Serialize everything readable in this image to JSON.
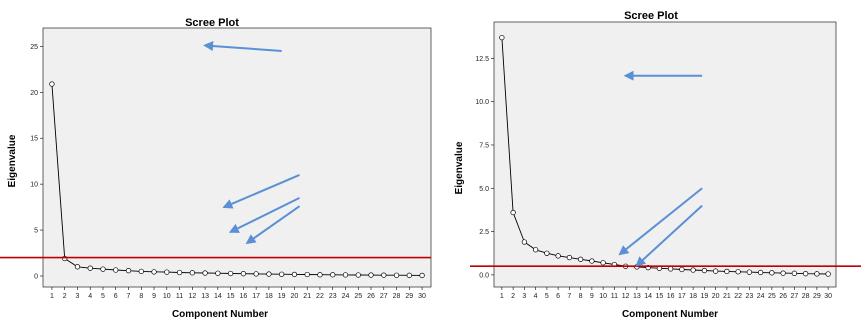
{
  "chart_data": [
    {
      "type": "line",
      "title": "Scree Plot",
      "xlabel": "Component Number",
      "ylabel": "Eigenvalue",
      "x": [
        1,
        2,
        3,
        4,
        5,
        6,
        7,
        8,
        9,
        10,
        11,
        12,
        13,
        14,
        15,
        16,
        17,
        18,
        19,
        20,
        21,
        22,
        23,
        24,
        25,
        26,
        27,
        28,
        29,
        30
      ],
      "values": [
        20.9,
        1.9,
        1.0,
        0.85,
        0.75,
        0.65,
        0.58,
        0.5,
        0.45,
        0.42,
        0.38,
        0.35,
        0.32,
        0.3,
        0.27,
        0.25,
        0.23,
        0.21,
        0.19,
        0.17,
        0.16,
        0.14,
        0.13,
        0.12,
        0.11,
        0.1,
        0.09,
        0.08,
        0.07,
        0.06
      ],
      "xlim": [
        0.3,
        30.7
      ],
      "ylim": [
        -1.2,
        27
      ],
      "yticks": [
        0,
        5,
        10,
        15,
        20,
        25
      ],
      "ytick_labels": [
        "0",
        "5",
        "10",
        "15",
        "20",
        "25"
      ],
      "reference_line": {
        "y": 2.0,
        "color": "#c00000"
      },
      "colors": {
        "line": "#000000",
        "plot_bg": "#f0f0f0",
        "arrow": "#5b8fd6"
      },
      "arrows": [
        {
          "from": [
            19.0,
            24.5
          ],
          "to": [
            13.0,
            25.1
          ]
        },
        {
          "from": [
            20.4,
            11.0
          ],
          "to": [
            14.5,
            7.5
          ]
        },
        {
          "from": [
            20.4,
            8.5
          ],
          "to": [
            15.0,
            4.8
          ]
        },
        {
          "from": [
            20.4,
            7.6
          ],
          "to": [
            16.3,
            3.6
          ]
        }
      ],
      "grid": false,
      "legend": "none"
    },
    {
      "type": "line",
      "title": "Scree Plot",
      "xlabel": "Component Number",
      "ylabel": "Eigenvalue",
      "x": [
        1,
        2,
        3,
        4,
        5,
        6,
        7,
        8,
        9,
        10,
        11,
        12,
        13,
        14,
        15,
        16,
        17,
        18,
        19,
        20,
        21,
        22,
        23,
        24,
        25,
        26,
        27,
        28,
        29,
        30
      ],
      "values": [
        13.7,
        3.6,
        1.9,
        1.45,
        1.25,
        1.1,
        1.0,
        0.9,
        0.8,
        0.7,
        0.6,
        0.5,
        0.46,
        0.42,
        0.38,
        0.35,
        0.31,
        0.28,
        0.25,
        0.22,
        0.2,
        0.18,
        0.16,
        0.14,
        0.12,
        0.1,
        0.09,
        0.07,
        0.06,
        0.05
      ],
      "xlim": [
        0.3,
        30.7
      ],
      "ylim": [
        -0.7,
        14.6
      ],
      "yticks": [
        0,
        2.5,
        5,
        7.5,
        10,
        12.5
      ],
      "ytick_labels": [
        "0.0",
        "2.5",
        "5.0",
        "7.5",
        "10.0",
        "12.5"
      ],
      "reference_line": {
        "y": 0.5,
        "color": "#c00000"
      },
      "colors": {
        "line": "#000000",
        "plot_bg": "#f0f0f0",
        "arrow": "#5b8fd6"
      },
      "arrows": [
        {
          "from": [
            18.8,
            11.5
          ],
          "to": [
            12.0,
            11.5
          ]
        },
        {
          "from": [
            18.8,
            5.0
          ],
          "to": [
            11.5,
            1.2
          ]
        },
        {
          "from": [
            18.8,
            4.0
          ],
          "to": [
            13.0,
            0.55
          ]
        }
      ],
      "grid": false,
      "legend": "none"
    }
  ]
}
